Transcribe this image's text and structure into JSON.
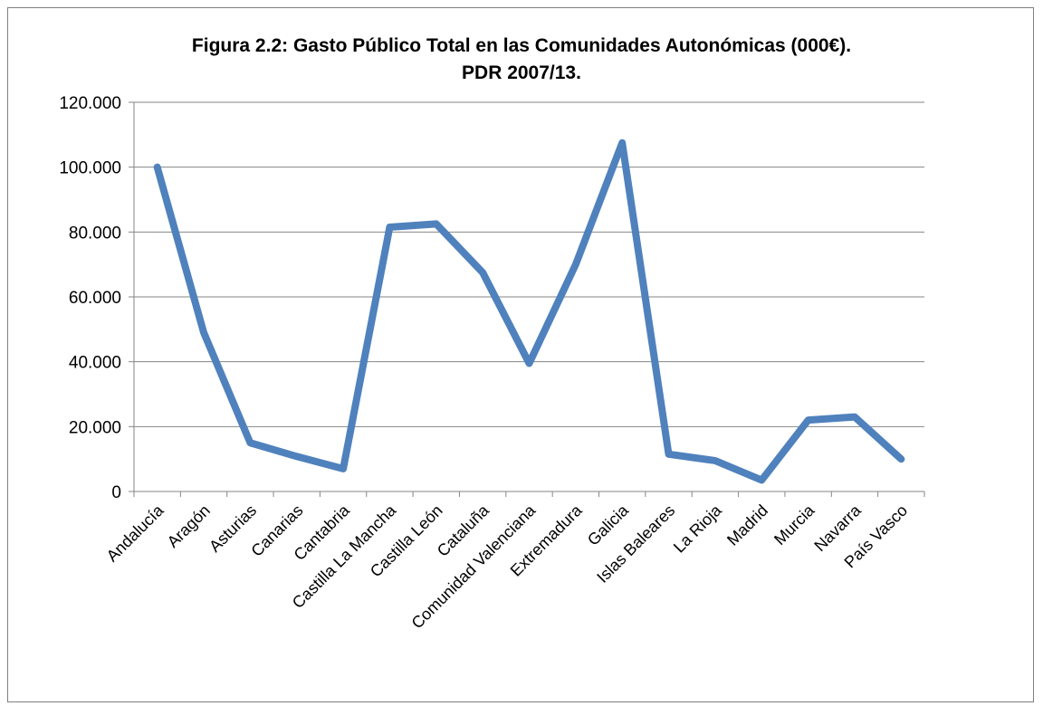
{
  "chart_data": {
    "type": "line",
    "title_line1": "Figura 2.2: Gasto Público Total en las Comunidades  Autonómicas (000€).",
    "title_line2": "PDR 2007/13.",
    "categories": [
      "Andalucía",
      "Aragón",
      "Asturias",
      "Canarias",
      "Cantabria",
      "Castilla La Mancha",
      "Castilla León",
      "Cataluña",
      "Comunidad Valenciana",
      "Extremadura",
      "Galicia",
      "Islas Baleares",
      "La Rioja",
      "Madrid",
      "Murcia",
      "Navarra",
      "País Vasco"
    ],
    "series": [
      {
        "values": [
          100000,
          49000,
          15000,
          10800,
          7000,
          81500,
          82500,
          67500,
          39500,
          70000,
          107500,
          11500,
          9500,
          3500,
          22000,
          23000,
          10000
        ],
        "color": "#4f81bd"
      }
    ],
    "y_ticks": [
      "0",
      "20.000",
      "40.000",
      "60.000",
      "80.000",
      "100.000",
      "120.000"
    ],
    "ylim": [
      0,
      120000
    ],
    "grid": true,
    "legend": "none"
  }
}
